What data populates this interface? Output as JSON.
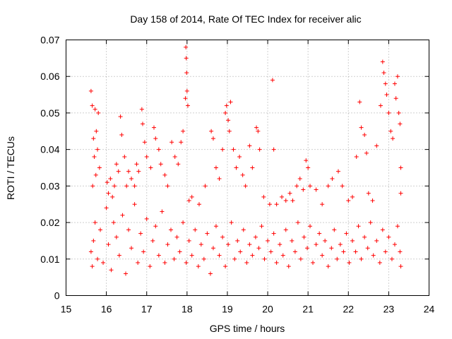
{
  "chart_data": {
    "type": "scatter",
    "title": "Day 158 of 2014, Rate Of TEC Index for receiver alic",
    "xlabel": "GPS time / hours",
    "ylabel": "ROTI / TECUs",
    "xlim": [
      15,
      24
    ],
    "ylim": [
      0,
      0.07
    ],
    "xticks": [
      "15",
      "16",
      "17",
      "18",
      "19",
      "20",
      "21",
      "22",
      "23",
      "24"
    ],
    "yticks": [
      "0",
      "0.01",
      "0.02",
      "0.03",
      "0.04",
      "0.05",
      "0.06",
      "0.07"
    ],
    "grid": true,
    "marker": "+",
    "color": "#ff0000",
    "series": [
      {
        "name": "ROTI",
        "points": [
          [
            15.62,
            0.056
          ],
          [
            15.65,
            0.052
          ],
          [
            15.68,
            0.043
          ],
          [
            15.7,
            0.038
          ],
          [
            15.72,
            0.051
          ],
          [
            15.75,
            0.045
          ],
          [
            15.78,
            0.04
          ],
          [
            15.8,
            0.05
          ],
          [
            15.83,
            0.035
          ],
          [
            15.66,
            0.03
          ],
          [
            15.74,
            0.033
          ],
          [
            16.02,
            0.031
          ],
          [
            16.05,
            0.028
          ],
          [
            16.1,
            0.032
          ],
          [
            16.15,
            0.027
          ],
          [
            16.2,
            0.03
          ],
          [
            16.25,
            0.036
          ],
          [
            16.3,
            0.034
          ],
          [
            16.35,
            0.049
          ],
          [
            16.38,
            0.044
          ],
          [
            16.45,
            0.038
          ],
          [
            16.5,
            0.03
          ],
          [
            16.55,
            0.034
          ],
          [
            16.62,
            0.032
          ],
          [
            16.7,
            0.03
          ],
          [
            16.75,
            0.036
          ],
          [
            16.8,
            0.034
          ],
          [
            16.88,
            0.051
          ],
          [
            16.9,
            0.047
          ],
          [
            16.95,
            0.042
          ],
          [
            17.0,
            0.038
          ],
          [
            17.1,
            0.035
          ],
          [
            17.18,
            0.046
          ],
          [
            17.22,
            0.043
          ],
          [
            17.3,
            0.04
          ],
          [
            17.35,
            0.036
          ],
          [
            17.45,
            0.033
          ],
          [
            17.52,
            0.03
          ],
          [
            17.62,
            0.042
          ],
          [
            17.7,
            0.038
          ],
          [
            17.78,
            0.036
          ],
          [
            17.85,
            0.042
          ],
          [
            17.9,
            0.045
          ],
          [
            17.97,
            0.068
          ],
          [
            17.98,
            0.065
          ],
          [
            17.99,
            0.061
          ],
          [
            18.0,
            0.056
          ],
          [
            18.02,
            0.052
          ],
          [
            17.96,
            0.054
          ],
          [
            18.05,
            0.026
          ],
          [
            18.12,
            0.027
          ],
          [
            18.3,
            0.025
          ],
          [
            18.45,
            0.03
          ],
          [
            18.6,
            0.045
          ],
          [
            18.65,
            0.043
          ],
          [
            18.72,
            0.035
          ],
          [
            18.8,
            0.032
          ],
          [
            18.88,
            0.04
          ],
          [
            18.95,
            0.05
          ],
          [
            18.98,
            0.052
          ],
          [
            19.02,
            0.048
          ],
          [
            19.05,
            0.045
          ],
          [
            19.08,
            0.053
          ],
          [
            19.15,
            0.04
          ],
          [
            19.22,
            0.035
          ],
          [
            19.3,
            0.038
          ],
          [
            19.38,
            0.033
          ],
          [
            19.45,
            0.03
          ],
          [
            19.55,
            0.041
          ],
          [
            19.62,
            0.035
          ],
          [
            19.72,
            0.046
          ],
          [
            19.76,
            0.045
          ],
          [
            19.8,
            0.04
          ],
          [
            19.9,
            0.027
          ],
          [
            20.05,
            0.025
          ],
          [
            20.12,
            0.059
          ],
          [
            20.15,
            0.04
          ],
          [
            20.22,
            0.025
          ],
          [
            20.35,
            0.027
          ],
          [
            20.45,
            0.026
          ],
          [
            20.55,
            0.028
          ],
          [
            20.62,
            0.026
          ],
          [
            20.72,
            0.03
          ],
          [
            20.8,
            0.032
          ],
          [
            20.88,
            0.029
          ],
          [
            20.95,
            0.037
          ],
          [
            21.0,
            0.035
          ],
          [
            21.05,
            0.03
          ],
          [
            21.2,
            0.029
          ],
          [
            21.35,
            0.025
          ],
          [
            21.5,
            0.03
          ],
          [
            21.6,
            0.032
          ],
          [
            21.75,
            0.034
          ],
          [
            21.85,
            0.03
          ],
          [
            22.0,
            0.026
          ],
          [
            22.1,
            0.027
          ],
          [
            22.2,
            0.038
          ],
          [
            22.28,
            0.053
          ],
          [
            22.32,
            0.046
          ],
          [
            22.4,
            0.044
          ],
          [
            22.45,
            0.039
          ],
          [
            22.5,
            0.028
          ],
          [
            22.6,
            0.026
          ],
          [
            22.7,
            0.041
          ],
          [
            22.8,
            0.052
          ],
          [
            22.85,
            0.064
          ],
          [
            22.88,
            0.061
          ],
          [
            22.92,
            0.058
          ],
          [
            22.95,
            0.055
          ],
          [
            23.0,
            0.05
          ],
          [
            23.05,
            0.045
          ],
          [
            23.1,
            0.043
          ],
          [
            23.15,
            0.058
          ],
          [
            23.18,
            0.054
          ],
          [
            23.22,
            0.06
          ],
          [
            23.25,
            0.05
          ],
          [
            23.28,
            0.047
          ],
          [
            23.3,
            0.035
          ],
          [
            23.3,
            0.028
          ],
          [
            15.62,
            0.012
          ],
          [
            15.65,
            0.008
          ],
          [
            15.68,
            0.015
          ],
          [
            15.72,
            0.02
          ],
          [
            15.78,
            0.01
          ],
          [
            15.85,
            0.018
          ],
          [
            15.92,
            0.009
          ],
          [
            16.0,
            0.024
          ],
          [
            16.05,
            0.014
          ],
          [
            16.12,
            0.007
          ],
          [
            16.18,
            0.02
          ],
          [
            16.25,
            0.016
          ],
          [
            16.32,
            0.011
          ],
          [
            16.4,
            0.022
          ],
          [
            16.48,
            0.006
          ],
          [
            16.55,
            0.018
          ],
          [
            16.62,
            0.013
          ],
          [
            16.7,
            0.025
          ],
          [
            16.78,
            0.009
          ],
          [
            16.85,
            0.017
          ],
          [
            16.92,
            0.012
          ],
          [
            17.0,
            0.021
          ],
          [
            17.08,
            0.008
          ],
          [
            17.15,
            0.015
          ],
          [
            17.22,
            0.019
          ],
          [
            17.3,
            0.011
          ],
          [
            17.38,
            0.023
          ],
          [
            17.45,
            0.009
          ],
          [
            17.52,
            0.014
          ],
          [
            17.6,
            0.018
          ],
          [
            17.68,
            0.01
          ],
          [
            17.75,
            0.016
          ],
          [
            17.82,
            0.012
          ],
          [
            17.9,
            0.02
          ],
          [
            17.98,
            0.009
          ],
          [
            18.05,
            0.015
          ],
          [
            18.12,
            0.011
          ],
          [
            18.2,
            0.018
          ],
          [
            18.28,
            0.008
          ],
          [
            18.35,
            0.014
          ],
          [
            18.42,
            0.01
          ],
          [
            18.5,
            0.017
          ],
          [
            18.58,
            0.006
          ],
          [
            18.65,
            0.013
          ],
          [
            18.72,
            0.019
          ],
          [
            18.8,
            0.011
          ],
          [
            18.88,
            0.016
          ],
          [
            18.95,
            0.008
          ],
          [
            19.02,
            0.014
          ],
          [
            19.1,
            0.02
          ],
          [
            19.18,
            0.01
          ],
          [
            19.25,
            0.015
          ],
          [
            19.32,
            0.012
          ],
          [
            19.4,
            0.018
          ],
          [
            19.48,
            0.009
          ],
          [
            19.55,
            0.014
          ],
          [
            19.62,
            0.011
          ],
          [
            19.7,
            0.016
          ],
          [
            19.78,
            0.013
          ],
          [
            19.85,
            0.019
          ],
          [
            19.92,
            0.01
          ],
          [
            20.0,
            0.015
          ],
          [
            20.08,
            0.012
          ],
          [
            20.15,
            0.017
          ],
          [
            20.22,
            0.009
          ],
          [
            20.3,
            0.014
          ],
          [
            20.38,
            0.011
          ],
          [
            20.45,
            0.018
          ],
          [
            20.52,
            0.008
          ],
          [
            20.6,
            0.015
          ],
          [
            20.68,
            0.012
          ],
          [
            20.75,
            0.02
          ],
          [
            20.82,
            0.01
          ],
          [
            20.9,
            0.016
          ],
          [
            20.98,
            0.013
          ],
          [
            21.05,
            0.019
          ],
          [
            21.12,
            0.009
          ],
          [
            21.2,
            0.014
          ],
          [
            21.28,
            0.017
          ],
          [
            21.35,
            0.011
          ],
          [
            21.42,
            0.015
          ],
          [
            21.5,
            0.008
          ],
          [
            21.58,
            0.013
          ],
          [
            21.65,
            0.018
          ],
          [
            21.72,
            0.01
          ],
          [
            21.8,
            0.014
          ],
          [
            21.88,
            0.012
          ],
          [
            21.95,
            0.017
          ],
          [
            22.02,
            0.009
          ],
          [
            22.1,
            0.015
          ],
          [
            22.18,
            0.012
          ],
          [
            22.25,
            0.019
          ],
          [
            22.32,
            0.01
          ],
          [
            22.4,
            0.016
          ],
          [
            22.48,
            0.013
          ],
          [
            22.55,
            0.02
          ],
          [
            22.62,
            0.011
          ],
          [
            22.7,
            0.015
          ],
          [
            22.78,
            0.009
          ],
          [
            22.85,
            0.018
          ],
          [
            22.92,
            0.012
          ],
          [
            23.0,
            0.016
          ],
          [
            23.08,
            0.01
          ],
          [
            23.15,
            0.014
          ],
          [
            23.22,
            0.019
          ],
          [
            23.28,
            0.012
          ],
          [
            23.3,
            0.008
          ]
        ]
      }
    ]
  }
}
